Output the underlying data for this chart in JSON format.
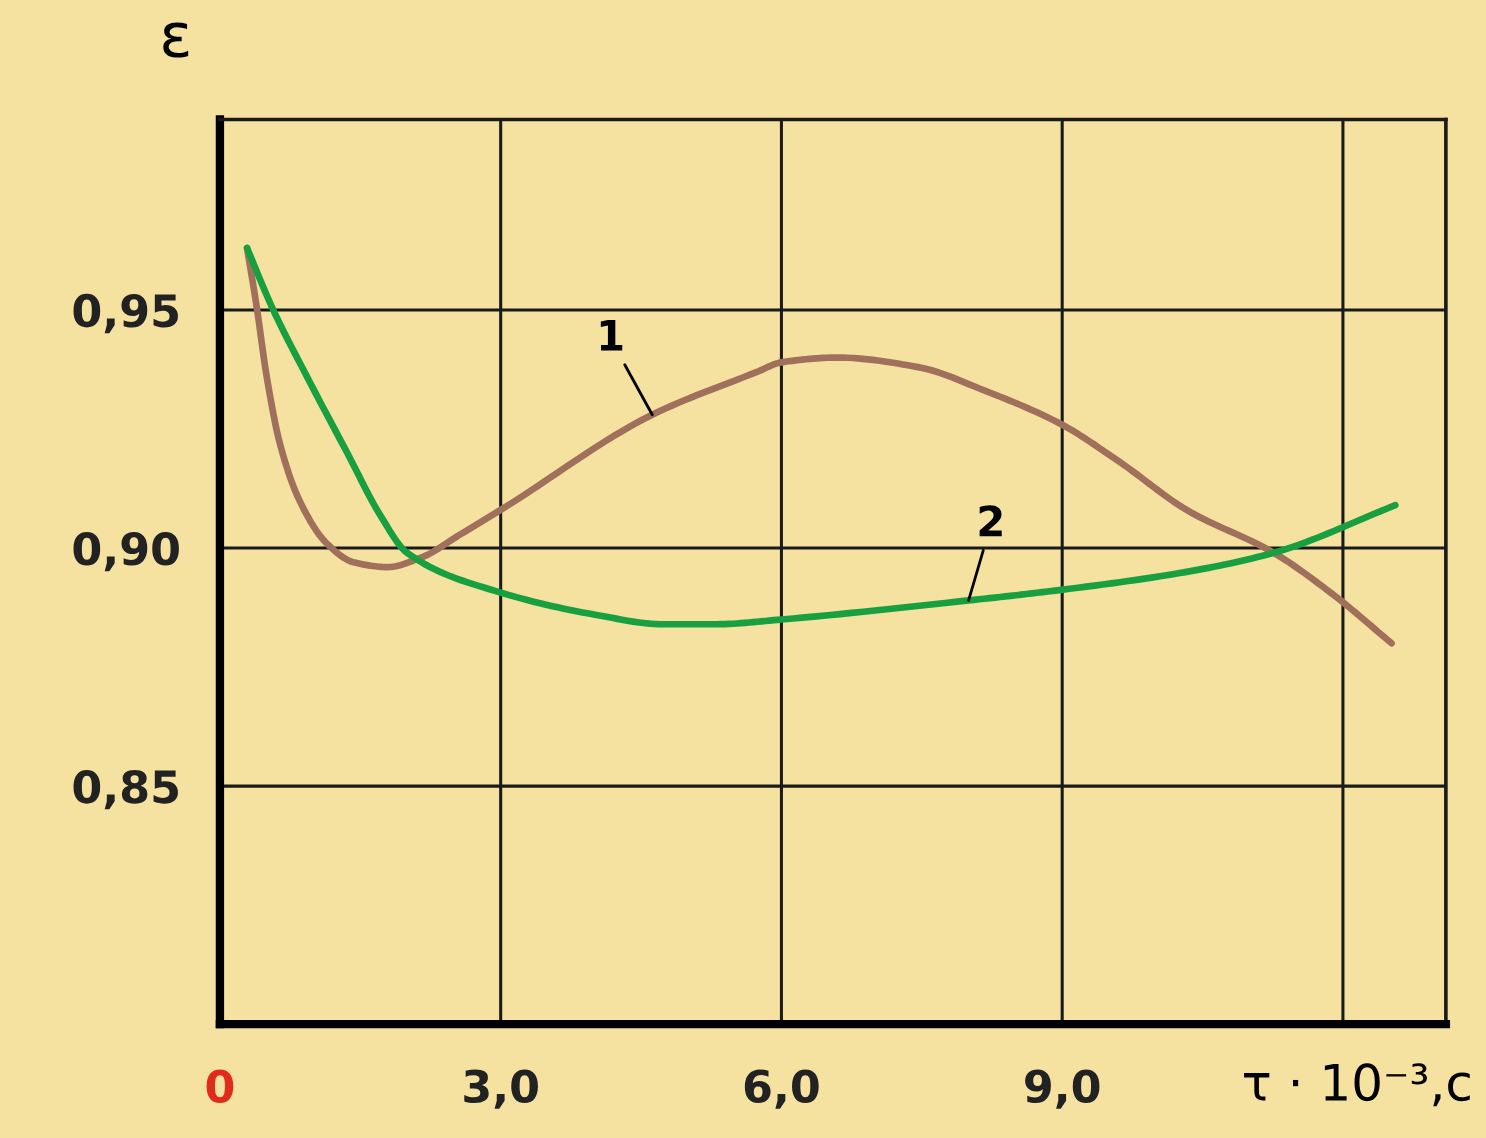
{
  "chart_data": {
    "type": "line",
    "xlabel": "τ · 10⁻³,с",
    "ylabel": "ε",
    "xlim": [
      0,
      13.1
    ],
    "ylim": [
      0.8,
      0.99
    ],
    "xticks": [
      0,
      {
        "value": 3,
        "label": "3,0"
      },
      {
        "value": 6,
        "label": "6,0"
      },
      {
        "value": 9,
        "label": "9,0"
      },
      {
        "value": 12,
        "label": null
      }
    ],
    "yticks": [
      {
        "value": 0.85,
        "label": "0,85"
      },
      {
        "value": 0.9,
        "label": "0,90"
      },
      {
        "value": 0.95,
        "label": "0,95"
      }
    ],
    "grid": true,
    "series": [
      {
        "name": "1",
        "color": "#a0705c",
        "x": [
          0.29,
          0.39,
          0.5,
          0.64,
          0.85,
          1.14,
          1.43,
          1.79,
          2.15,
          2.58,
          3.0,
          4.62,
          5.74,
          6.0,
          6.6,
          7.46,
          8.18,
          8.99,
          9.62,
          10.33,
          11.26,
          11.91,
          12.52
        ],
        "values": [
          0.963,
          0.951,
          0.936,
          0.922,
          0.91,
          0.901,
          0.897,
          0.896,
          0.898,
          0.903,
          0.908,
          0.928,
          0.937,
          0.939,
          0.94,
          0.938,
          0.933,
          0.926,
          0.918,
          0.908,
          0.899,
          0.89,
          0.88
        ]
      },
      {
        "name": "2",
        "color": "#18a040",
        "x": [
          0.29,
          0.57,
          0.93,
          1.36,
          1.71,
          2.0,
          2.94,
          4.01,
          4.73,
          5.31,
          6.0,
          8.0,
          8.9,
          10.33,
          11.26,
          12.56
        ],
        "values": [
          0.963,
          0.95,
          0.936,
          0.92,
          0.907,
          0.899,
          0.891,
          0.886,
          0.884,
          0.884,
          0.885,
          0.889,
          0.891,
          0.895,
          0.899,
          0.909
        ]
      }
    ]
  }
}
